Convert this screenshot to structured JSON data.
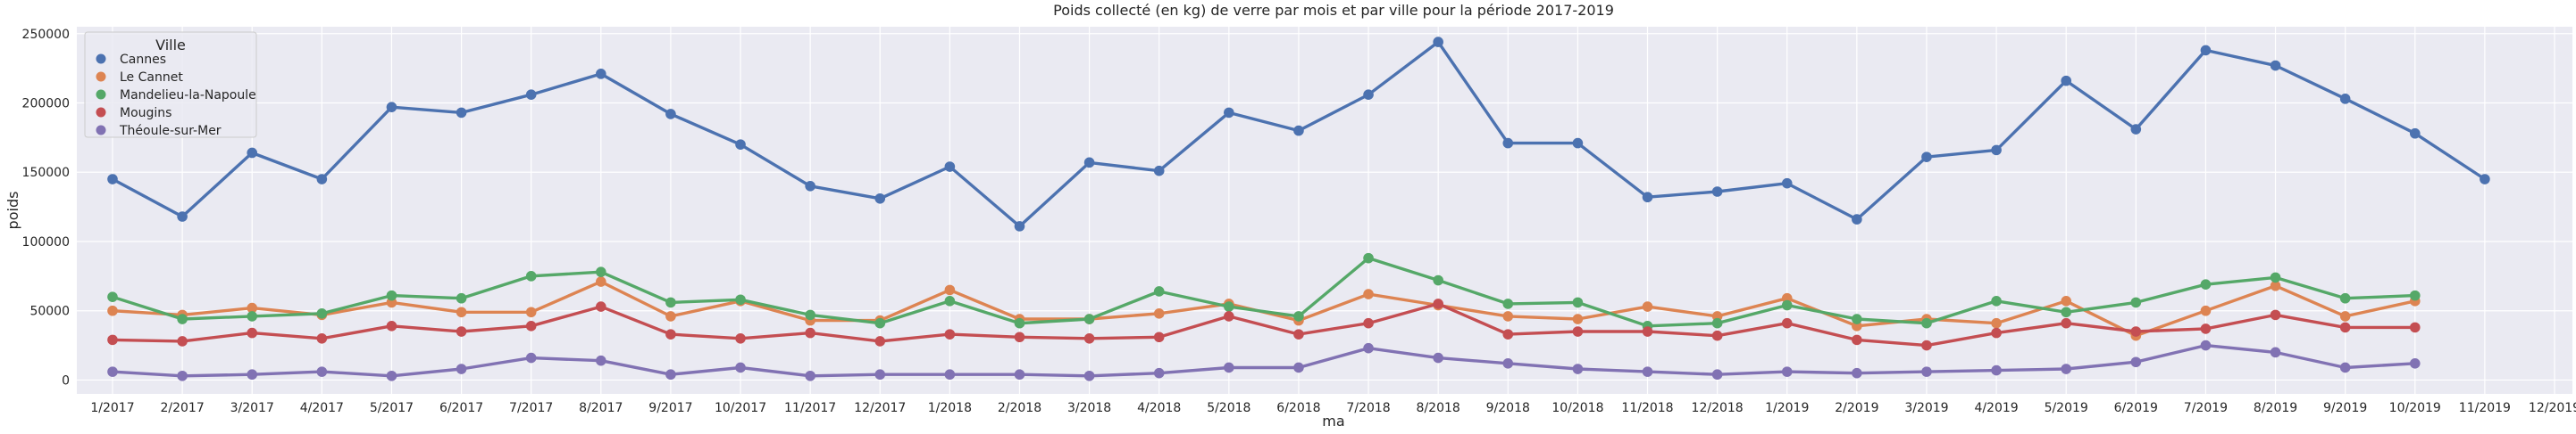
{
  "chart_data": {
    "type": "line",
    "title": "Poids collecté (en kg) de verre par mois et par ville pour la période 2017-2019",
    "xlabel": "ma",
    "ylabel": "poids",
    "ylim": [
      -10000,
      255000
    ],
    "yticks": [
      0,
      50000,
      100000,
      150000,
      200000,
      250000
    ],
    "grid": true,
    "legend_title": "Ville",
    "legend_position": "top-left",
    "categories": [
      "1/2017",
      "2/2017",
      "3/2017",
      "4/2017",
      "5/2017",
      "6/2017",
      "7/2017",
      "8/2017",
      "9/2017",
      "10/2017",
      "11/2017",
      "12/2017",
      "1/2018",
      "2/2018",
      "3/2018",
      "4/2018",
      "5/2018",
      "6/2018",
      "7/2018",
      "8/2018",
      "9/2018",
      "10/2018",
      "11/2018",
      "12/2018",
      "1/2019",
      "2/2019",
      "3/2019",
      "4/2019",
      "5/2019",
      "6/2019",
      "7/2019",
      "8/2019",
      "9/2019",
      "10/2019",
      "11/2019",
      "12/2019"
    ],
    "series": [
      {
        "name": "Cannes",
        "color": "#4c72b0",
        "values": [
          145000,
          118000,
          164000,
          145000,
          197000,
          193000,
          206000,
          221000,
          192000,
          170000,
          140000,
          131000,
          154000,
          111000,
          157000,
          151000,
          193000,
          180000,
          206000,
          244000,
          171000,
          171000,
          132000,
          136000,
          142000,
          116000,
          161000,
          166000,
          216000,
          181000,
          238000,
          227000,
          203000,
          178000,
          145000,
          null
        ]
      },
      {
        "name": "Le Cannet",
        "color": "#dd8452",
        "values": [
          50000,
          47000,
          52000,
          47000,
          56000,
          49000,
          49000,
          71000,
          46000,
          57000,
          43000,
          43000,
          65000,
          44000,
          44000,
          48000,
          55000,
          43000,
          62000,
          54000,
          46000,
          44000,
          53000,
          46000,
          59000,
          39000,
          44000,
          41000,
          57000,
          32000,
          50000,
          68000,
          46000,
          57000,
          null,
          null
        ]
      },
      {
        "name": "Mandelieu-la-Napoule",
        "color": "#55a868",
        "values": [
          60000,
          44000,
          46000,
          48000,
          61000,
          59000,
          75000,
          78000,
          56000,
          58000,
          47000,
          41000,
          57000,
          41000,
          44000,
          64000,
          53000,
          46000,
          88000,
          72000,
          55000,
          56000,
          39000,
          41000,
          54000,
          44000,
          41000,
          57000,
          49000,
          56000,
          69000,
          74000,
          59000,
          61000,
          null,
          null
        ]
      },
      {
        "name": "Mougins",
        "color": "#c44e52",
        "values": [
          29000,
          28000,
          34000,
          30000,
          39000,
          35000,
          39000,
          53000,
          33000,
          30000,
          34000,
          28000,
          33000,
          31000,
          30000,
          31000,
          46000,
          33000,
          41000,
          55000,
          33000,
          35000,
          35000,
          32000,
          41000,
          29000,
          25000,
          34000,
          41000,
          35000,
          37000,
          47000,
          38000,
          38000,
          null,
          null
        ]
      },
      {
        "name": "Théoule-sur-Mer",
        "color": "#8172b3",
        "values": [
          6000,
          3000,
          4000,
          6000,
          3000,
          8000,
          16000,
          14000,
          4000,
          9000,
          3000,
          4000,
          4000,
          4000,
          3000,
          5000,
          9000,
          9000,
          23000,
          16000,
          12000,
          8000,
          6000,
          4000,
          6000,
          5000,
          6000,
          7000,
          8000,
          13000,
          25000,
          20000,
          9000,
          12000,
          null,
          null
        ]
      }
    ]
  }
}
